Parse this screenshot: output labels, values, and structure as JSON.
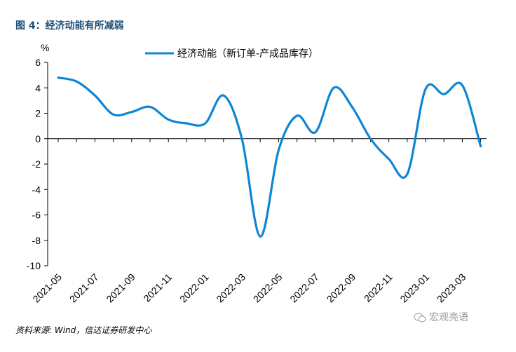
{
  "figure_title": "图 4：经济动能有所减弱",
  "source": "资料来源: Wind，信达证券研发中心",
  "watermark": "宏观亮语",
  "colors": {
    "series": "#0e86d4",
    "title": "#1f4e79",
    "axis": "#000000"
  },
  "chart_data": {
    "type": "line",
    "title": "",
    "xlabel": "",
    "ylabel": "%",
    "ylim": [
      -10,
      6
    ],
    "yticks": [
      "6",
      "4",
      "2",
      "0",
      "-2",
      "-4",
      "-6",
      "-8",
      "-10"
    ],
    "xtick_labels": [
      "2021-05",
      "2021-07",
      "2021-09",
      "2021-11",
      "2022-01",
      "2022-03",
      "2022-05",
      "2022-07",
      "2022-09",
      "2022-11",
      "2023-01",
      "2023-03"
    ],
    "legend": "top-center",
    "grid": false,
    "x": [
      "2021-05",
      "2021-06",
      "2021-07",
      "2021-08",
      "2021-09",
      "2021-10",
      "2021-11",
      "2021-12",
      "2022-01",
      "2022-02",
      "2022-03",
      "2022-04",
      "2022-05",
      "2022-06",
      "2022-07",
      "2022-08",
      "2022-09",
      "2022-10",
      "2022-11",
      "2022-12",
      "2023-01",
      "2023-02",
      "2023-03",
      "2023-04"
    ],
    "series": [
      {
        "name": "经济动能（新订单-产成品库存）",
        "values": [
          4.8,
          4.5,
          3.4,
          1.9,
          2.1,
          2.5,
          1.5,
          1.2,
          1.2,
          3.4,
          0.0,
          -7.7,
          -0.9,
          1.8,
          0.5,
          4.0,
          2.5,
          0.0,
          -1.6,
          -2.8,
          3.9,
          3.5,
          4.2,
          -0.6
        ]
      }
    ]
  }
}
